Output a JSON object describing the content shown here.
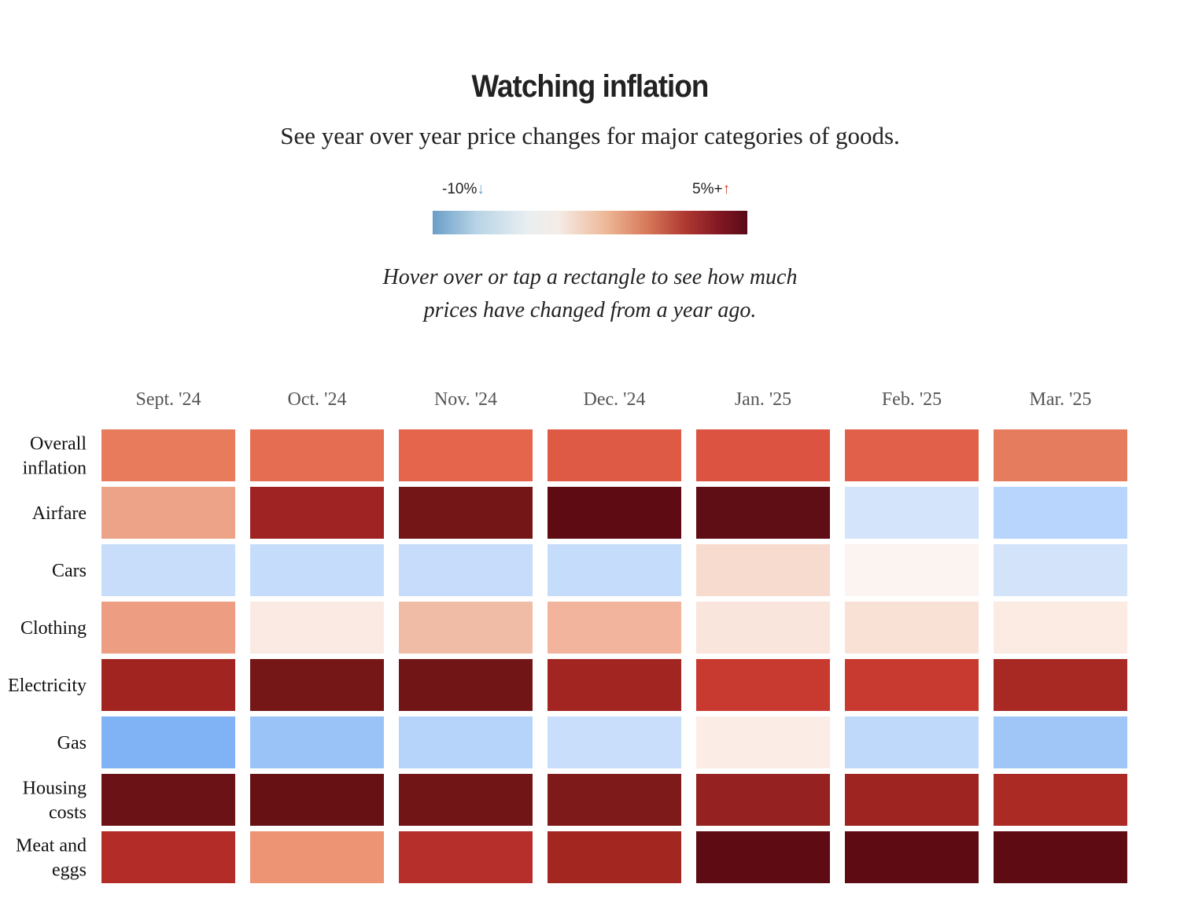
{
  "header": {
    "title": "Watching inflation",
    "subtitle": "See year over year price changes for major categories of goods.",
    "instruction_line1": "Hover over or tap a rectangle to see how much",
    "instruction_line2": "prices have changed from a year ago."
  },
  "legend": {
    "low_label": "-10%",
    "low_arrow": "↓",
    "high_label": "5%+",
    "high_arrow": "↑",
    "low_color": "#6a9ec8",
    "high_color": "#5a0a18"
  },
  "chart_data": {
    "type": "heatmap",
    "title": "Watching inflation",
    "subtitle": "See year over year price changes for major categories of goods.",
    "columns": [
      "Sept. '24",
      "Oct. '24",
      "Nov. '24",
      "Dec. '24",
      "Jan. '25",
      "Feb. '25",
      "Mar. '25"
    ],
    "rows": [
      {
        "label": [
          "Overall",
          "inflation"
        ],
        "colors": [
          "#e77b5c",
          "#e56e52",
          "#e4644c",
          "#df5a45",
          "#dc5441",
          "#e0604a",
          "#e67c5e"
        ]
      },
      {
        "label": [
          "Airfare"
        ],
        "colors": [
          "#eda387",
          "#a02323",
          "#741517",
          "#5e0b13",
          "#600e15",
          "#d4e4fa",
          "#b7d5fd"
        ]
      },
      {
        "label": [
          "Cars"
        ],
        "colors": [
          "#c8ddfa",
          "#c6dcfb",
          "#c6dcfa",
          "#c6dcfb",
          "#f7dbcf",
          "#fcf4f0",
          "#d3e3f9"
        ]
      },
      {
        "label": [
          "Clothing"
        ],
        "colors": [
          "#ec9d82",
          "#fbeae3",
          "#f1bca5",
          "#f2b49c",
          "#fae5dc",
          "#f9e1d6",
          "#fbebe3"
        ]
      },
      {
        "label": [
          "Electricity"
        ],
        "colors": [
          "#a12420",
          "#751617",
          "#721517",
          "#a22522",
          "#c83a2f",
          "#c83a2f",
          "#a82823"
        ]
      },
      {
        "label": [
          "Gas"
        ],
        "colors": [
          "#80b3f6",
          "#9ac3f7",
          "#b6d4fa",
          "#c8defb",
          "#fbede5",
          "#bfd9fa",
          "#9fc6f7"
        ]
      },
      {
        "label": [
          "Housing",
          "costs"
        ],
        "colors": [
          "#6a1216",
          "#671115",
          "#721517",
          "#7f1a1b",
          "#952220",
          "#9e2421",
          "#ab2a24"
        ]
      },
      {
        "label": [
          "Meat and",
          "eggs"
        ],
        "colors": [
          "#b32c28",
          "#ec9474",
          "#b72f2b",
          "#a42621",
          "#5e0b13",
          "#5e0b13",
          "#5e0b13"
        ]
      }
    ],
    "scale": {
      "min_label": "-10%",
      "max_label": "5%+"
    }
  }
}
